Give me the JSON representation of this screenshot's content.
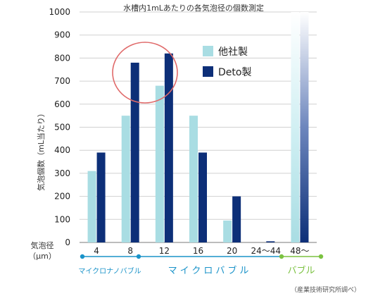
{
  "chart_data": {
    "type": "bar",
    "title": "水槽内1mLあたりの各気泡径の個数測定",
    "ylabel": "気泡個数（mL当たり）",
    "xlabel_line1": "気泡径",
    "xlabel_line2": "（μm）",
    "ylim": [
      0,
      1000
    ],
    "yticks": [
      0,
      100,
      200,
      300,
      400,
      500,
      600,
      700,
      800,
      900,
      1000
    ],
    "grid": true,
    "legend_position": "top-right",
    "categories": [
      "4",
      "8",
      "12",
      "16",
      "20",
      "24～44",
      "48～"
    ],
    "series": [
      {
        "name": "他社製",
        "color": "#a9dde3",
        "values": [
          310,
          550,
          680,
          550,
          95,
          0,
          1000
        ]
      },
      {
        "name": "Deto製",
        "color": "#0d2f78",
        "values": [
          390,
          780,
          820,
          390,
          200,
          5,
          1000
        ]
      }
    ],
    "ranges": [
      {
        "label": "マイクロナノバブル",
        "color": "#1a93c9"
      },
      {
        "label": "マイクロバブル",
        "color": "#1a93c9"
      },
      {
        "label": "バブル",
        "color": "#7bc241"
      }
    ],
    "highlight_circle_color": "#e06a6a",
    "source_note": "（産業技術研究所調べ）"
  }
}
